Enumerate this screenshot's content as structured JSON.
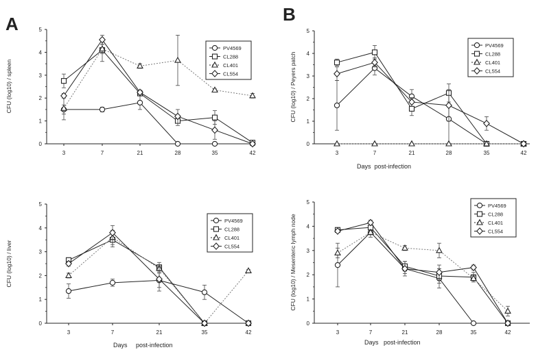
{
  "panel_labels": {
    "A": "A",
    "B": "B"
  },
  "chart_data": [
    {
      "type": "line",
      "ylabel": "CFU (log10) / spleen",
      "xlabel": "",
      "categories": [
        "3",
        "7",
        "21",
        "28",
        "35",
        "42"
      ],
      "ylim": [
        0,
        5
      ],
      "yticks": [
        "0",
        "1",
        "2",
        "3",
        "4",
        "5"
      ],
      "legend": [
        "PV4569",
        "CL288",
        "CL401",
        "CL554"
      ],
      "series": [
        {
          "name": "PV4569",
          "marker": "circle",
          "dash": false,
          "values": [
            1.5,
            1.5,
            1.8,
            0,
            0,
            0
          ],
          "errors": [
            0.2,
            0.1,
            0.3,
            0,
            0,
            0
          ]
        },
        {
          "name": "CL288",
          "marker": "square",
          "dash": false,
          "values": [
            2.75,
            4.1,
            2.2,
            1.0,
            1.15,
            0.05
          ],
          "errors": [
            0.3,
            0.5,
            0.1,
            0.2,
            0.3,
            0
          ]
        },
        {
          "name": "CL401",
          "marker": "triangle",
          "dash": true,
          "values": [
            1.55,
            4.15,
            3.4,
            3.65,
            2.35,
            2.1
          ],
          "errors": [
            0.5,
            0.2,
            0.1,
            1.1,
            0.05,
            0.1
          ]
        },
        {
          "name": "CL554",
          "marker": "diamond",
          "dash": false,
          "values": [
            2.1,
            4.55,
            2.25,
            1.2,
            0.6,
            0
          ],
          "errors": [
            0.1,
            0.2,
            0.1,
            0.3,
            0.4,
            0
          ]
        }
      ]
    },
    {
      "type": "line",
      "ylabel": "CFU (log10) / Peyers patch",
      "xlabel": "Days  post-infection",
      "categories": [
        "3",
        "7",
        "21",
        "28",
        "35",
        "42"
      ],
      "ylim": [
        0,
        5
      ],
      "yticks": [
        "0",
        "1",
        "2",
        "3",
        "4",
        "5"
      ],
      "legend": [
        "PV4569",
        "CL288",
        "CL401",
        "CL554"
      ],
      "series": [
        {
          "name": "PV4569",
          "marker": "circle",
          "dash": false,
          "values": [
            1.7,
            3.35,
            2.1,
            1.1,
            0,
            0
          ],
          "errors": [
            1.1,
            0.3,
            0.3,
            1.1,
            0,
            0
          ]
        },
        {
          "name": "CL288",
          "marker": "square",
          "dash": false,
          "values": [
            3.6,
            4.05,
            1.55,
            2.25,
            0,
            0
          ],
          "errors": [
            0.15,
            0.3,
            0.3,
            0.4,
            0,
            0
          ]
        },
        {
          "name": "CL401",
          "marker": "triangle",
          "dash": true,
          "values": [
            0,
            0,
            0,
            0,
            0,
            0
          ],
          "errors": [
            0,
            0,
            0,
            0,
            0,
            0
          ]
        },
        {
          "name": "CL554",
          "marker": "diamond",
          "dash": false,
          "values": [
            3.1,
            3.6,
            1.85,
            1.7,
            0.9,
            0
          ],
          "errors": [
            0.3,
            0.2,
            0.2,
            0.7,
            0.3,
            0
          ]
        }
      ]
    },
    {
      "type": "line",
      "ylabel": "CFU (log10) / liver",
      "xlabel": "Days     post-infection",
      "categories": [
        "3",
        "7",
        "21",
        "35",
        "42"
      ],
      "ylim": [
        0,
        5
      ],
      "yticks": [
        "0",
        "1",
        "2",
        "3",
        "4",
        "5"
      ],
      "legend": [
        "PV4569",
        "CL288",
        "CL401",
        "CL554"
      ],
      "series": [
        {
          "name": "PV4569",
          "marker": "circle",
          "dash": false,
          "values": [
            1.35,
            1.7,
            1.8,
            1.3,
            0
          ],
          "errors": [
            0.3,
            0.15,
            0.3,
            0.3,
            0
          ]
        },
        {
          "name": "CL288",
          "marker": "square",
          "dash": false,
          "values": [
            2.65,
            3.5,
            2.35,
            0,
            0
          ],
          "errors": [
            0.1,
            0.3,
            0.2,
            0,
            0
          ]
        },
        {
          "name": "CL401",
          "marker": "triangle",
          "dash": true,
          "values": [
            2.0,
            3.6,
            2.3,
            0,
            2.2
          ],
          "errors": [
            0.1,
            0.3,
            0.1,
            0,
            0.05
          ]
        },
        {
          "name": "CL554",
          "marker": "diamond",
          "dash": false,
          "values": [
            2.5,
            3.8,
            1.85,
            0,
            0
          ],
          "errors": [
            0.1,
            0.3,
            0.5,
            0,
            0
          ]
        }
      ]
    },
    {
      "type": "line",
      "ylabel": "CFU (log10) / Mesenteric lymph node",
      "xlabel": "Days   post-infection",
      "categories": [
        "3",
        "7",
        "21",
        "28",
        "35",
        "42"
      ],
      "ylim": [
        0,
        5
      ],
      "yticks": [
        "0",
        "1",
        "2",
        "3",
        "4",
        "5"
      ],
      "legend": [
        "PV4569",
        "CL288",
        "CL401",
        "CL554"
      ],
      "series": [
        {
          "name": "PV4569",
          "marker": "circle",
          "dash": false,
          "values": [
            2.4,
            3.75,
            2.25,
            1.85,
            0,
            0
          ],
          "errors": [
            0.9,
            0.2,
            0.3,
            0.4,
            0,
            0
          ]
        },
        {
          "name": "CL288",
          "marker": "square",
          "dash": false,
          "values": [
            3.85,
            3.95,
            2.35,
            1.95,
            1.9,
            0
          ],
          "errors": [
            0.05,
            0.2,
            0.2,
            0.3,
            0.2,
            0
          ]
        },
        {
          "name": "CL401",
          "marker": "triangle",
          "dash": true,
          "values": [
            2.9,
            3.75,
            3.1,
            3.0,
            1.85,
            0.5
          ],
          "errors": [
            0.2,
            0.1,
            0.1,
            0.3,
            0.1,
            0.2
          ]
        },
        {
          "name": "CL554",
          "marker": "diamond",
          "dash": false,
          "values": [
            3.8,
            4.15,
            2.25,
            2.1,
            2.3,
            0
          ],
          "errors": [
            0.05,
            0.1,
            0.2,
            0.3,
            0.1,
            0
          ]
        }
      ]
    }
  ]
}
